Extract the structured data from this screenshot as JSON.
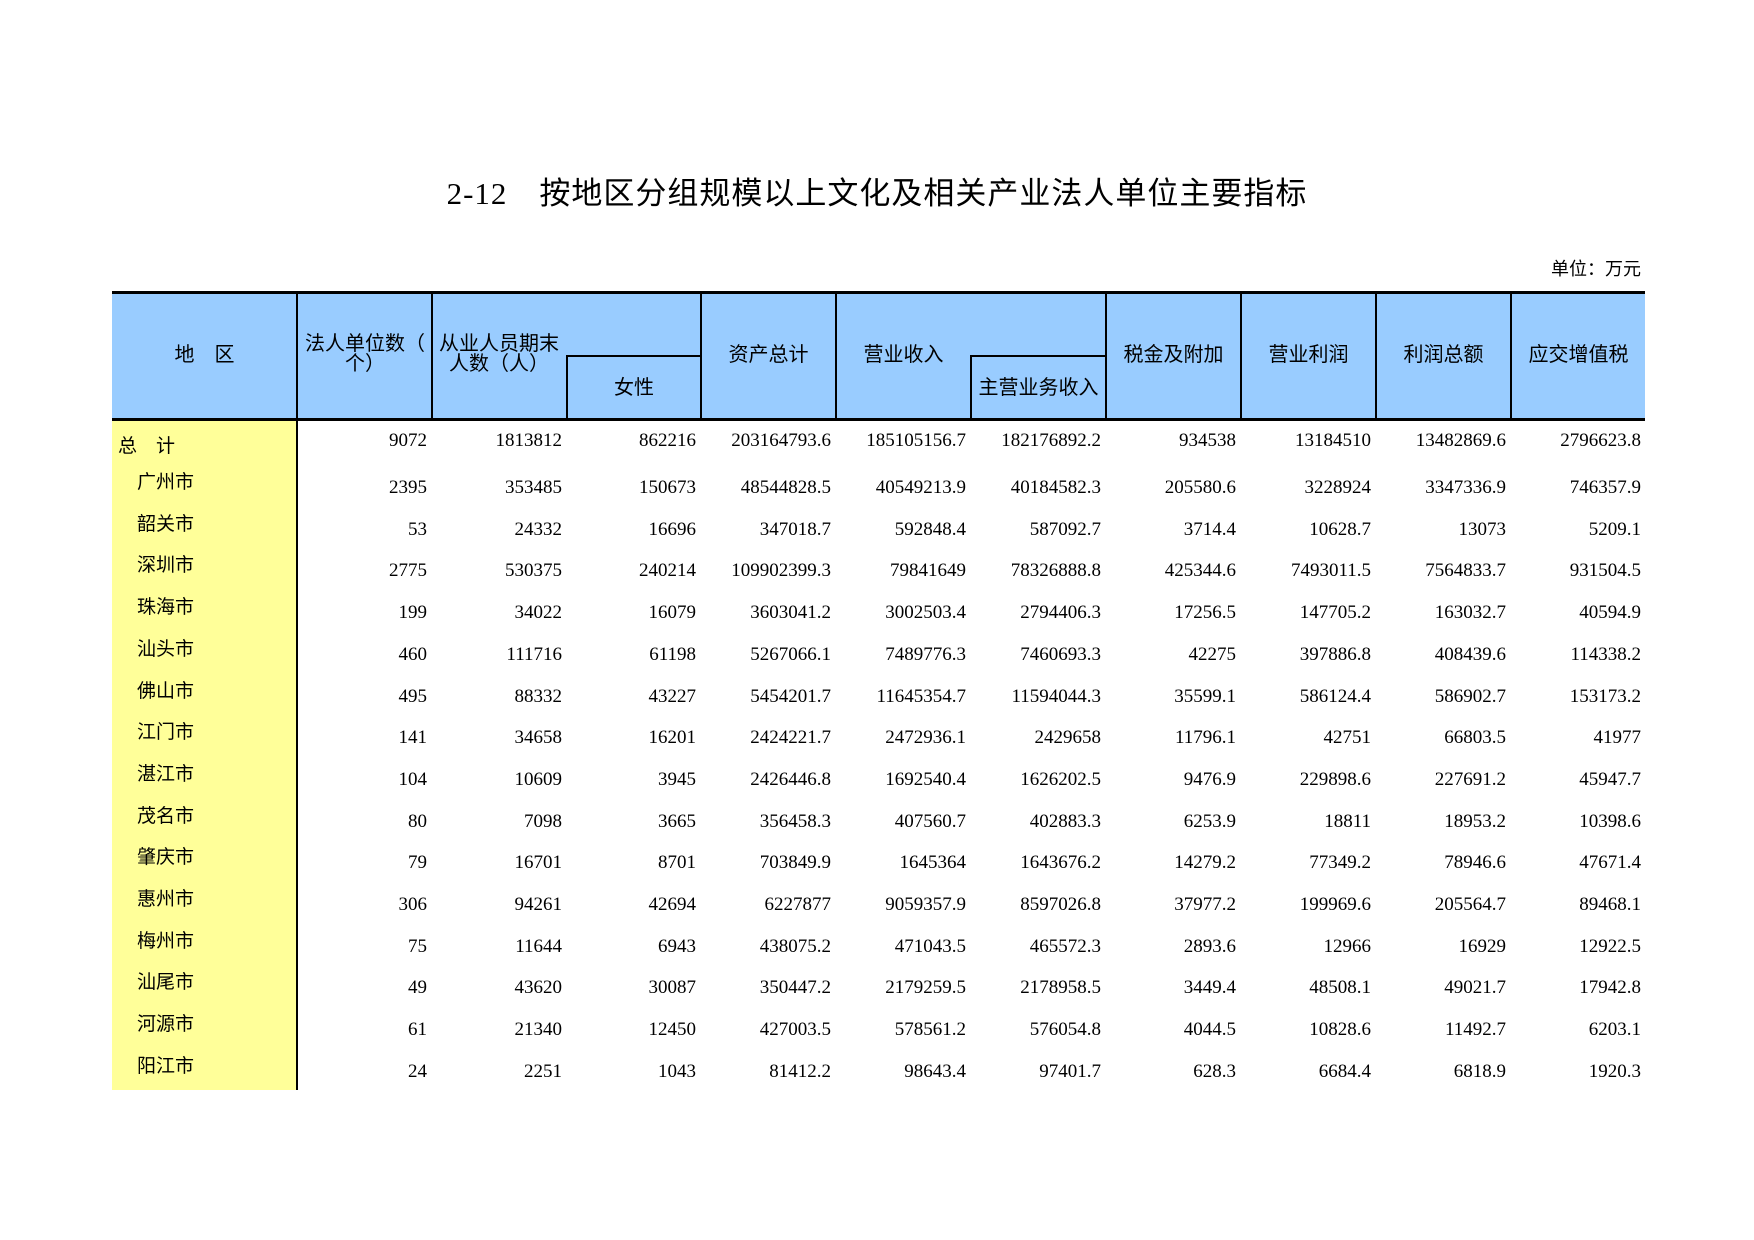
{
  "title": "2-12　按地区分组规模以上文化及相关产业法人单位主要指标",
  "unit": "单位：万元",
  "headers": {
    "region": "地　区",
    "units_line1": "法人单位数（",
    "units_line2": "个）",
    "employees_line1": "从业人员期末",
    "employees_line2": "人数（人）",
    "female": "女性",
    "assets": "资产总计",
    "revenue": "营业收入",
    "main_revenue": "主营业务收入",
    "taxes": "税金及附加",
    "operating_profit": "营业利润",
    "total_profit": "利润总额",
    "vat": "应交增值税"
  },
  "colors": {
    "header_bg": "#99CCFF",
    "region_bg": "#FFFF99"
  },
  "rows": [
    {
      "region": "总　计",
      "values": [
        "9072",
        "1813812",
        "862216",
        "203164793.6",
        "185105156.7",
        "182176892.2",
        "934538",
        "13184510",
        "13482869.6",
        "2796623.8"
      ]
    },
    {
      "region": "广州市",
      "values": [
        "2395",
        "353485",
        "150673",
        "48544828.5",
        "40549213.9",
        "40184582.3",
        "205580.6",
        "3228924",
        "3347336.9",
        "746357.9"
      ]
    },
    {
      "region": "韶关市",
      "values": [
        "53",
        "24332",
        "16696",
        "347018.7",
        "592848.4",
        "587092.7",
        "3714.4",
        "10628.7",
        "13073",
        "5209.1"
      ]
    },
    {
      "region": "深圳市",
      "values": [
        "2775",
        "530375",
        "240214",
        "109902399.3",
        "79841649",
        "78326888.8",
        "425344.6",
        "7493011.5",
        "7564833.7",
        "931504.5"
      ]
    },
    {
      "region": "珠海市",
      "values": [
        "199",
        "34022",
        "16079",
        "3603041.2",
        "3002503.4",
        "2794406.3",
        "17256.5",
        "147705.2",
        "163032.7",
        "40594.9"
      ]
    },
    {
      "region": "汕头市",
      "values": [
        "460",
        "111716",
        "61198",
        "5267066.1",
        "7489776.3",
        "7460693.3",
        "42275",
        "397886.8",
        "408439.6",
        "114338.2"
      ]
    },
    {
      "region": "佛山市",
      "values": [
        "495",
        "88332",
        "43227",
        "5454201.7",
        "11645354.7",
        "11594044.3",
        "35599.1",
        "586124.4",
        "586902.7",
        "153173.2"
      ]
    },
    {
      "region": "江门市",
      "values": [
        "141",
        "34658",
        "16201",
        "2424221.7",
        "2472936.1",
        "2429658",
        "11796.1",
        "42751",
        "66803.5",
        "41977"
      ]
    },
    {
      "region": "湛江市",
      "values": [
        "104",
        "10609",
        "3945",
        "2426446.8",
        "1692540.4",
        "1626202.5",
        "9476.9",
        "229898.6",
        "227691.2",
        "45947.7"
      ]
    },
    {
      "region": "茂名市",
      "values": [
        "80",
        "7098",
        "3665",
        "356458.3",
        "407560.7",
        "402883.3",
        "6253.9",
        "18811",
        "18953.2",
        "10398.6"
      ]
    },
    {
      "region": "肇庆市",
      "values": [
        "79",
        "16701",
        "8701",
        "703849.9",
        "1645364",
        "1643676.2",
        "14279.2",
        "77349.2",
        "78946.6",
        "47671.4"
      ]
    },
    {
      "region": "惠州市",
      "values": [
        "306",
        "94261",
        "42694",
        "6227877",
        "9059357.9",
        "8597026.8",
        "37977.2",
        "199969.6",
        "205564.7",
        "89468.1"
      ]
    },
    {
      "region": "梅州市",
      "values": [
        "75",
        "11644",
        "6943",
        "438075.2",
        "471043.5",
        "465572.3",
        "2893.6",
        "12966",
        "16929",
        "12922.5"
      ]
    },
    {
      "region": "汕尾市",
      "values": [
        "49",
        "43620",
        "30087",
        "350447.2",
        "2179259.5",
        "2178958.5",
        "3449.4",
        "48508.1",
        "49021.7",
        "17942.8"
      ]
    },
    {
      "region": "河源市",
      "values": [
        "61",
        "21340",
        "12450",
        "427003.5",
        "578561.2",
        "576054.8",
        "4044.5",
        "10828.6",
        "11492.7",
        "6203.1"
      ]
    },
    {
      "region": "阳江市",
      "values": [
        "24",
        "2251",
        "1043",
        "81412.2",
        "98643.4",
        "97401.7",
        "628.3",
        "6684.4",
        "6818.9",
        "1920.3"
      ]
    }
  ]
}
